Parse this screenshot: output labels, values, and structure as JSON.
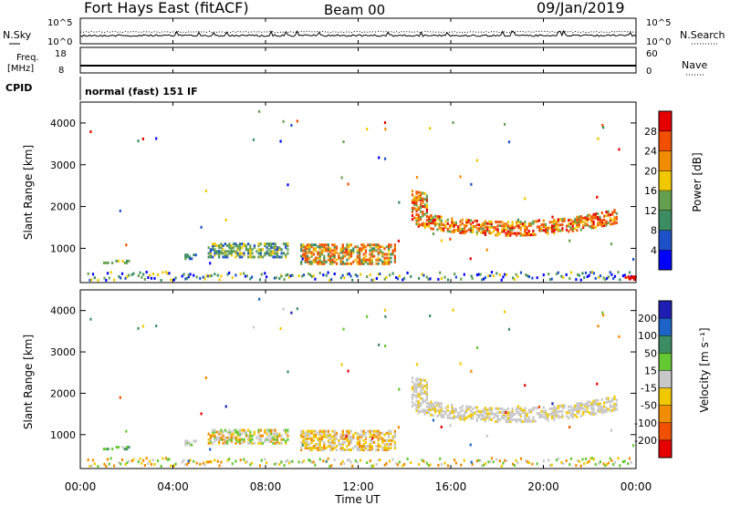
{
  "header": {
    "station": "Fort Hays East (fitACF)",
    "beam": "Beam 00",
    "date": "09/Jan/2019"
  },
  "noise_panel": {
    "left_label": "N.Sky",
    "right_label": "N.Search",
    "ticks": [
      "10^5",
      "10^0"
    ]
  },
  "freq_panel": {
    "left_label_top": "Freq.",
    "left_label_unit": "[MHz]",
    "left_ticks": [
      "18",
      "8"
    ],
    "right_label": "Nave",
    "right_ticks": [
      "60",
      "0"
    ]
  },
  "cpid_panel": {
    "label": "CPID",
    "mode_text": "normal (fast) 151 IF"
  },
  "x_axis": {
    "ticks": [
      "00:00",
      "04:00",
      "08:00",
      "12:00",
      "16:00",
      "20:00",
      "00:00"
    ],
    "label": "Time UT"
  },
  "power_panel": {
    "ylabel": "Slant Range [km]",
    "yticks": [
      "1000",
      "2000",
      "3000",
      "4000"
    ],
    "colorbar_label": "Power [dB]",
    "colorbar_ticks": [
      "4",
      "8",
      "12",
      "16",
      "20",
      "24",
      "28"
    ],
    "colors": [
      "#0000ff",
      "#1e50c8",
      "#3c8c64",
      "#64a050",
      "#f0c800",
      "#f08c00",
      "#f05000",
      "#e60000"
    ]
  },
  "velocity_panel": {
    "ylabel": "Slant Range [km]",
    "yticks": [
      "1000",
      "2000",
      "3000",
      "4000"
    ],
    "colorbar_label": "Velocity [m s⁻¹]",
    "colorbar_ticks": [
      "200",
      "100",
      "50",
      "15",
      "-15",
      "-50",
      "-100",
      "-200"
    ],
    "colors": [
      "#1e1eb4",
      "#1e64c8",
      "#3c8c64",
      "#64c832",
      "#c8c8c8",
      "#f0c800",
      "#f08c00",
      "#f05000",
      "#e60000"
    ]
  },
  "chart_data": {
    "type": "heatmap",
    "x_range_hours": [
      0,
      24
    ],
    "y_range_km": [
      180,
      4500
    ],
    "scatter_regions": [
      {
        "panel": "power",
        "t_start": 0.8,
        "t_end": 2.2,
        "range_km": [
          650,
          720
        ],
        "level": "medium-low",
        "velocity": "positive-low"
      },
      {
        "panel": "power",
        "t_start": 4.5,
        "t_end": 5.0,
        "range_km": [
          750,
          850
        ],
        "level": "low",
        "velocity": "positive-low"
      },
      {
        "panel": "power",
        "t_start": 5.5,
        "t_end": 9.0,
        "range_km": [
          800,
          1100
        ],
        "level": "medium",
        "velocity": "near-zero/positive"
      },
      {
        "panel": "power",
        "t_start": 9.5,
        "t_end": 13.5,
        "range_km": [
          600,
          1100
        ],
        "level": "medium-high",
        "velocity": "near-zero/negative"
      },
      {
        "panel": "power",
        "t_start": 14.3,
        "t_end": 23.2,
        "range_km": [
          1200,
          2300
        ],
        "level": "high",
        "velocity": "near-zero"
      }
    ]
  }
}
